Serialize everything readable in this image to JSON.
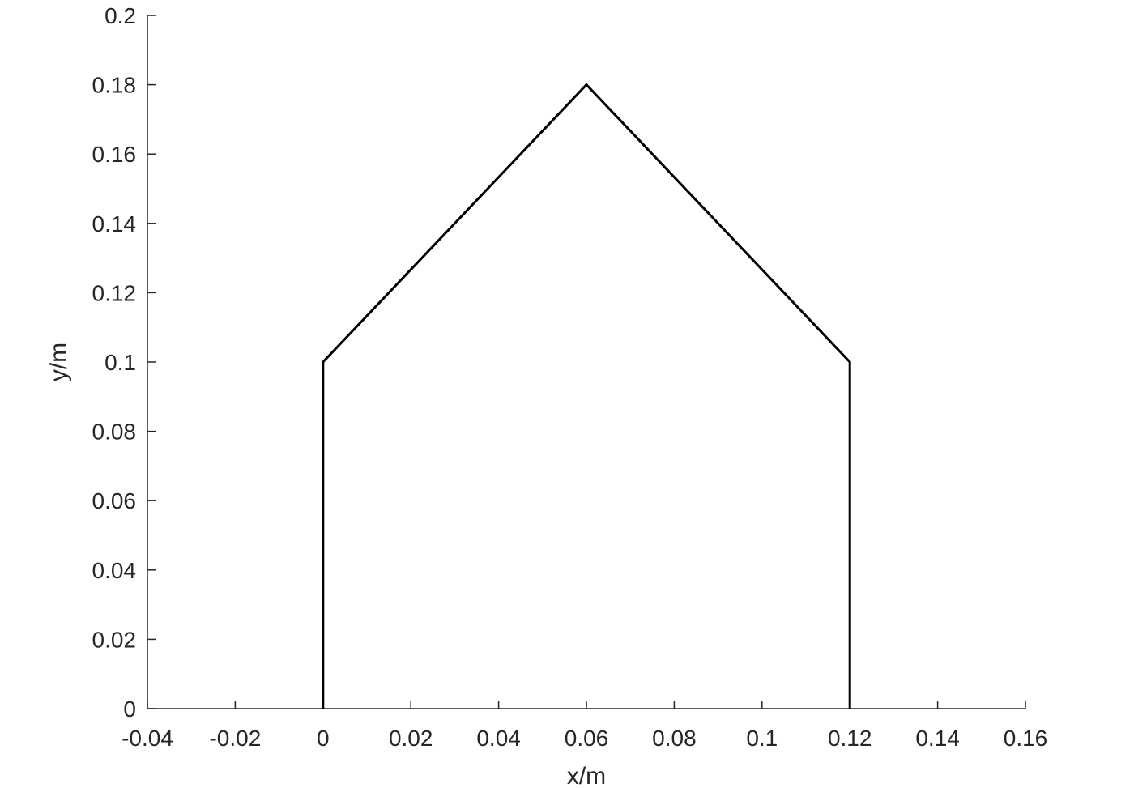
{
  "chart_data": {
    "type": "line",
    "xlabel": "x/m",
    "ylabel": "y/m",
    "xlim": [
      -0.04,
      0.16
    ],
    "ylim": [
      0,
      0.2
    ],
    "grid": false,
    "x_ticks": [
      -0.04,
      -0.02,
      0,
      0.02,
      0.04,
      0.06,
      0.08,
      0.1,
      0.12,
      0.14,
      0.16
    ],
    "x_tick_labels": [
      "-0.04",
      "-0.02",
      "0",
      "0.02",
      "0.04",
      "0.06",
      "0.08",
      "0.1",
      "0.12",
      "0.14",
      "0.16"
    ],
    "y_ticks": [
      0,
      0.02,
      0.04,
      0.06,
      0.08,
      0.1,
      0.12,
      0.14,
      0.16,
      0.18,
      0.2
    ],
    "y_tick_labels": [
      "0",
      "0.02",
      "0.04",
      "0.06",
      "0.08",
      "0.1",
      "0.12",
      "0.14",
      "0.16",
      "0.18",
      "0.2"
    ],
    "series": [
      {
        "x": [
          0,
          0,
          0.06,
          0.12,
          0.12
        ],
        "y": [
          0,
          0.1,
          0.18,
          0.1,
          0
        ]
      }
    ],
    "colors": {
      "line": "#000000",
      "axis": "#262626"
    }
  }
}
